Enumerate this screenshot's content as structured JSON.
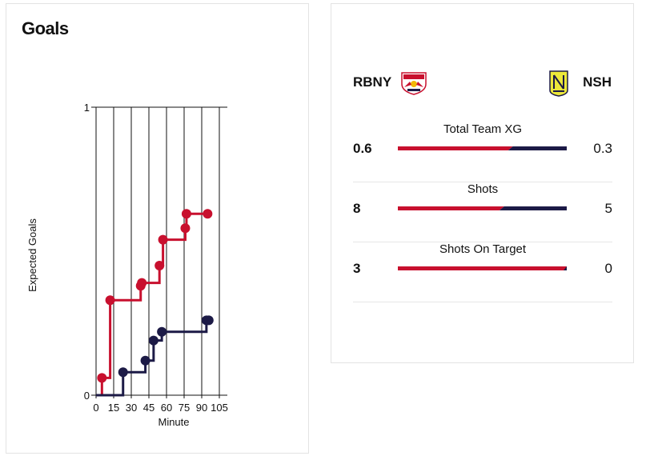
{
  "goals_card": {
    "title": "Goals"
  },
  "chart_data": {
    "type": "line",
    "step": true,
    "ylabel": "Expected Goals",
    "xlabel": "Minute",
    "xticks": [
      0,
      15,
      30,
      45,
      60,
      75,
      90,
      105
    ],
    "yticks": [
      0,
      1
    ],
    "xlim": [
      0,
      105
    ],
    "ylim": [
      0,
      1
    ],
    "grid": "vertical",
    "series": [
      {
        "name": "RBNY",
        "color": "#c8102e",
        "points": [
          [
            5,
            0.06
          ],
          [
            12,
            0.33
          ],
          [
            38,
            0.38
          ],
          [
            39,
            0.39
          ],
          [
            54,
            0.45
          ],
          [
            57,
            0.54
          ],
          [
            76,
            0.58
          ],
          [
            77,
            0.63
          ],
          [
            95,
            0.63
          ]
        ]
      },
      {
        "name": "NSH",
        "color": "#1c1a46",
        "points": [
          [
            23,
            0.08
          ],
          [
            42,
            0.12
          ],
          [
            49,
            0.19
          ],
          [
            56,
            0.22
          ],
          [
            94,
            0.26
          ],
          [
            96,
            0.26
          ]
        ]
      }
    ]
  },
  "stats": {
    "home_team": "RBNY",
    "away_team": "NSH",
    "home_color": "#c8102e",
    "away_color": "#1c1a46",
    "rows": [
      {
        "label": "Total Team XG",
        "home": "0.6",
        "away": "0.3",
        "home_value": 0.6,
        "away_value": 0.3
      },
      {
        "label": "Shots",
        "home": "8",
        "away": "5",
        "home_value": 8,
        "away_value": 5
      },
      {
        "label": "Shots On Target",
        "home": "3",
        "away": "0",
        "home_value": 3,
        "away_value": 0
      }
    ]
  }
}
